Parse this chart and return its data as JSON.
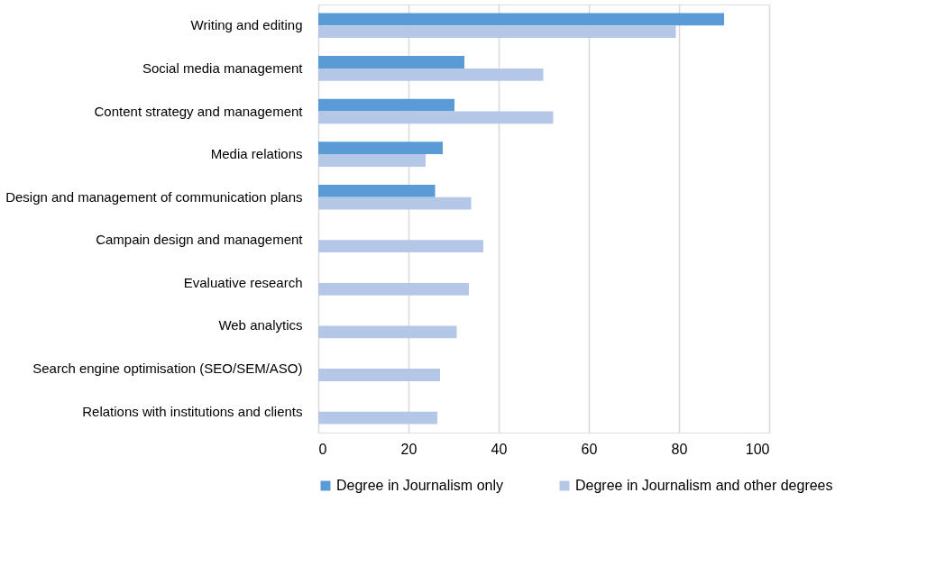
{
  "chart_data": {
    "type": "bar",
    "orientation": "horizontal",
    "categories": [
      "Writing and editing",
      "Social media management",
      "Content strategy and management",
      "Media relations",
      "Design and management of communication plans",
      "Campain design and management",
      "Evaluative research",
      "Web analytics",
      "Search engine optimisation (SEO/SEM/ASO)",
      "Relations with institutions and clients"
    ],
    "series": [
      {
        "name": "Degree in Journalism only",
        "color": "#5b9bd5",
        "values": [
          90,
          32.4,
          30.2,
          27.6,
          25.9,
          null,
          null,
          null,
          null,
          null
        ]
      },
      {
        "name": "Degree in Journalism and other degrees",
        "color": "#b4c7e7",
        "values": [
          79.3,
          49.9,
          52.1,
          23.8,
          33.9,
          36.6,
          33.4,
          30.7,
          27.0,
          26.4
        ]
      }
    ],
    "xlim": [
      0,
      100
    ],
    "xticks": [
      0,
      20,
      40,
      60,
      80,
      100
    ],
    "grid": "x",
    "legend": "bottom"
  }
}
